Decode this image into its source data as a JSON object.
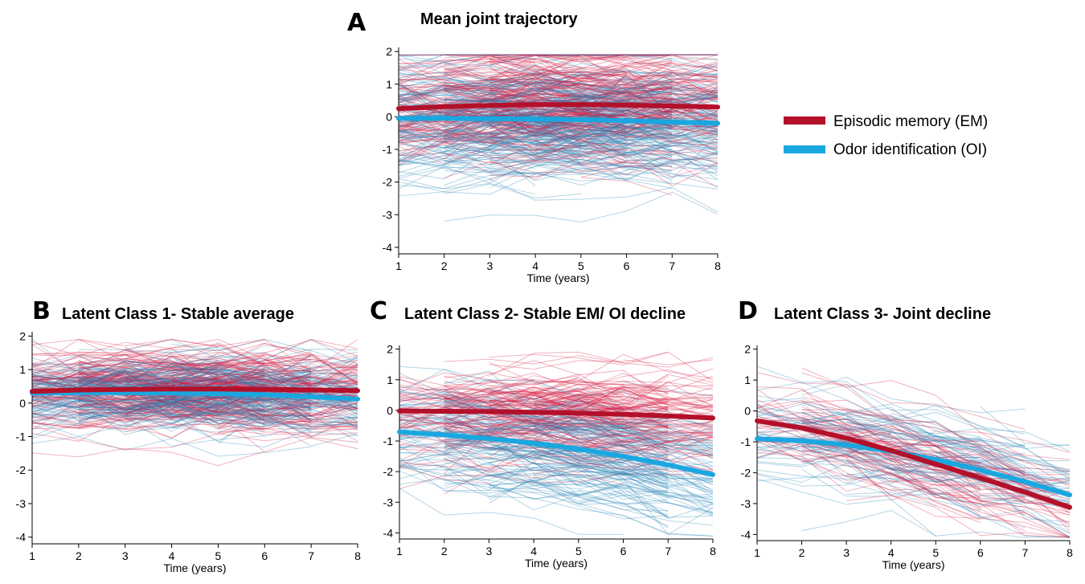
{
  "legend": [
    {
      "label": "Episodic memory (EM)",
      "color": "#c8102e"
    },
    {
      "label": "Odor identification (OI)",
      "color": "#1aa7e0"
    }
  ],
  "colors": {
    "em_mean": "#b3102a",
    "em_indiv": "#d8153c",
    "oi_mean": "#1aa7e0",
    "oi_indiv": "#2a86b8"
  },
  "chart_data": [
    {
      "panel": "A",
      "type": "line",
      "title": "Mean joint trajectory",
      "xlabel": "Time (years)",
      "ylabel": "",
      "x": [
        1,
        2,
        3,
        4,
        5,
        6,
        7,
        8
      ],
      "xlim": [
        1,
        8
      ],
      "ylim": [
        -4.2,
        2.2
      ],
      "yticks": [
        2,
        1,
        0,
        -1,
        -2,
        -3,
        -4
      ],
      "series": [
        {
          "name": "Episodic memory (EM)",
          "values": [
            0.25,
            0.31,
            0.35,
            0.37,
            0.37,
            0.36,
            0.33,
            0.3
          ]
        },
        {
          "name": "Odor identification (OI)",
          "values": [
            -0.05,
            -0.05,
            -0.06,
            -0.07,
            -0.09,
            -0.12,
            -0.16,
            -0.2
          ]
        }
      ]
    },
    {
      "panel": "B",
      "type": "line",
      "title": "Latent Class 1- Stable average",
      "xlabel": "Time (years)",
      "ylabel": "",
      "x": [
        1,
        2,
        3,
        4,
        5,
        6,
        7,
        8
      ],
      "xlim": [
        1,
        8
      ],
      "ylim": [
        -4.2,
        2.2
      ],
      "yticks": [
        2,
        1,
        0,
        -1,
        -2,
        -3,
        -4
      ],
      "series": [
        {
          "name": "Episodic memory (EM)",
          "values": [
            0.35,
            0.39,
            0.41,
            0.42,
            0.42,
            0.41,
            0.39,
            0.37
          ]
        },
        {
          "name": "Odor identification (OI)",
          "values": [
            0.3,
            0.31,
            0.31,
            0.3,
            0.28,
            0.25,
            0.19,
            0.12
          ]
        }
      ]
    },
    {
      "panel": "C",
      "type": "line",
      "title": "Latent Class 2-  Stable EM/ OI decline",
      "xlabel": "Time (years)",
      "ylabel": "",
      "x": [
        1,
        2,
        3,
        4,
        5,
        6,
        7,
        8
      ],
      "xlim": [
        1,
        8
      ],
      "ylim": [
        -4.2,
        2.2
      ],
      "yticks": [
        2,
        1,
        0,
        -1,
        -2,
        -3,
        -4
      ],
      "series": [
        {
          "name": "Episodic memory (EM)",
          "values": [
            -0.02,
            -0.03,
            -0.04,
            -0.06,
            -0.09,
            -0.13,
            -0.18,
            -0.25
          ]
        },
        {
          "name": "Odor identification (OI)",
          "values": [
            -0.7,
            -0.8,
            -0.92,
            -1.07,
            -1.26,
            -1.5,
            -1.78,
            -2.1
          ]
        }
      ]
    },
    {
      "panel": "D",
      "type": "line",
      "title": "Latent Class 3- Joint decline",
      "xlabel": "Time (years)",
      "ylabel": "",
      "x": [
        1,
        2,
        3,
        4,
        5,
        6,
        7,
        8
      ],
      "xlim": [
        1,
        8
      ],
      "ylim": [
        -4.2,
        2.2
      ],
      "yticks": [
        2,
        1,
        0,
        -1,
        -2,
        -3,
        -4
      ],
      "series": [
        {
          "name": "Episodic memory (EM)",
          "values": [
            -0.32,
            -0.55,
            -0.88,
            -1.28,
            -1.72,
            -2.17,
            -2.63,
            -3.12
          ]
        },
        {
          "name": "Odor identification (OI)",
          "values": [
            -0.9,
            -0.97,
            -1.1,
            -1.3,
            -1.58,
            -1.91,
            -2.29,
            -2.72
          ]
        }
      ]
    }
  ]
}
